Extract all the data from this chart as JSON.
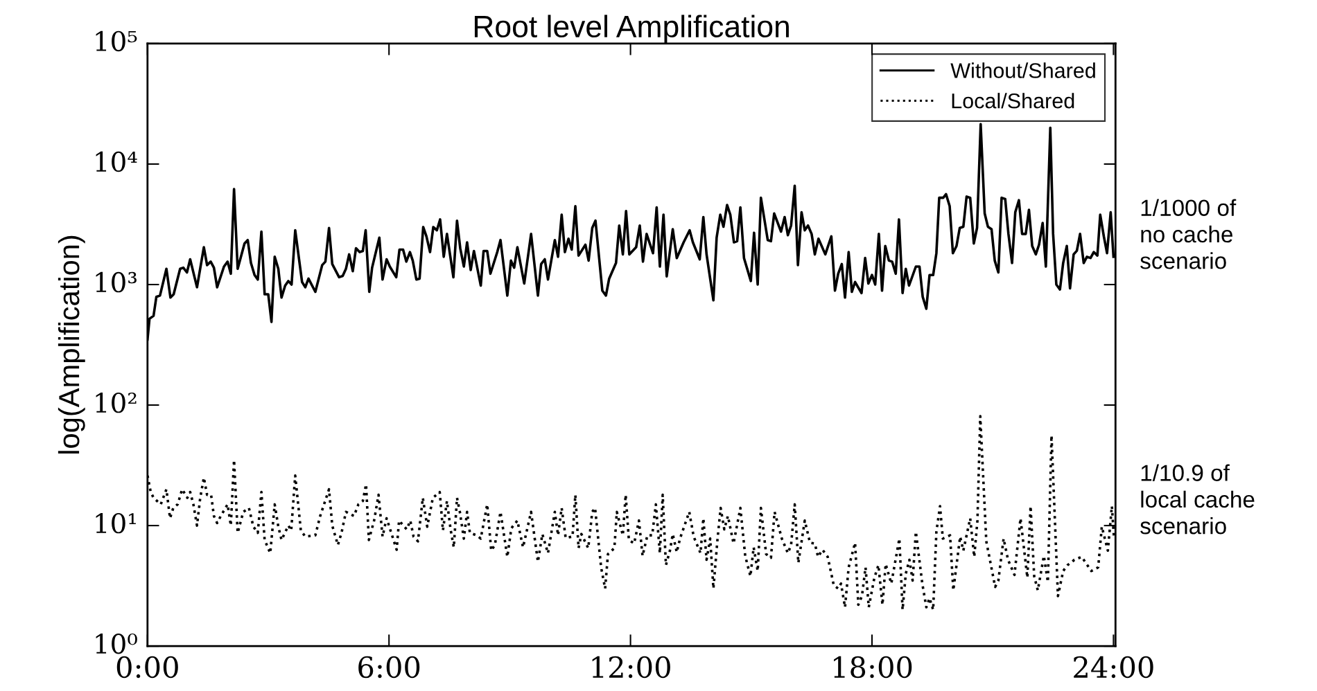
{
  "chart_data": {
    "type": "line",
    "title": "Root level Amplification",
    "ylabel": "log(Amplification)",
    "log": "y",
    "legend": "top right",
    "grid": false,
    "xlim": [
      0,
      24.05
    ],
    "xticks": [
      {
        "value": 0,
        "label": "0:00"
      },
      {
        "value": 6,
        "label": "6:00"
      },
      {
        "value": 12,
        "label": "12:00"
      },
      {
        "value": 18,
        "label": "18:00"
      },
      {
        "value": 24,
        "label": "24:00"
      }
    ],
    "ylim": [
      1,
      100000
    ],
    "yticks": [
      {
        "value": 1,
        "label": "10⁰"
      },
      {
        "value": 10,
        "label": "10¹"
      },
      {
        "value": 100,
        "label": "10²"
      },
      {
        "value": 1000,
        "label": "10³"
      },
      {
        "value": 10000,
        "label": "10⁴"
      },
      {
        "value": 100000,
        "label": "10⁵"
      }
    ],
    "annotations": [
      "1/1000 of\nno cache\nscenario",
      "1/10.9 of\nlocal cache\nscenario"
    ],
    "series": [
      {
        "name": "Without/Shared",
        "color": "#000000",
        "line_style": "solid",
        "x": [
          0,
          0.05,
          0.15,
          0.22,
          0.31,
          0.47,
          0.57,
          0.65,
          0.81,
          0.89,
          0.98,
          1.06,
          1.23,
          1.4,
          1.48,
          1.57,
          1.65,
          1.73,
          1.9,
          1.99,
          2.07,
          2.15,
          2.24,
          2.41,
          2.49,
          2.57,
          2.66,
          2.74,
          2.83,
          2.91,
          3.0,
          3.08,
          3.16,
          3.25,
          3.33,
          3.42,
          3.5,
          3.58,
          3.67,
          3.84,
          3.92,
          4.0,
          4.17,
          4.34,
          4.42,
          4.51,
          4.59,
          4.76,
          4.85,
          4.93,
          5.01,
          5.1,
          5.18,
          5.27,
          5.35,
          5.42,
          5.51,
          5.58,
          5.76,
          5.84,
          5.94,
          6.02,
          6.18,
          6.26,
          6.35,
          6.43,
          6.52,
          6.59,
          6.68,
          6.76,
          6.85,
          6.93,
          7.02,
          7.1,
          7.19,
          7.27,
          7.36,
          7.44,
          7.6,
          7.69,
          7.77,
          7.86,
          7.94,
          8.03,
          8.11,
          8.28,
          8.35,
          8.44,
          8.52,
          8.69,
          8.77,
          8.94,
          9.03,
          9.11,
          9.19,
          9.36,
          9.53,
          9.7,
          9.78,
          9.87,
          9.95,
          10.12,
          10.2,
          10.29,
          10.37,
          10.46,
          10.54,
          10.63,
          10.71,
          10.88,
          10.96,
          11.05,
          11.13,
          11.3,
          11.39,
          11.47,
          11.64,
          11.72,
          11.81,
          11.89,
          11.97,
          12.14,
          12.23,
          12.31,
          12.4,
          12.56,
          12.65,
          12.73,
          12.82,
          12.9,
          13.05,
          13.15,
          13.32,
          13.47,
          13.55,
          13.72,
          13.81,
          13.89,
          14.06,
          14.14,
          14.23,
          14.31,
          14.4,
          14.48,
          14.57,
          14.65,
          14.73,
          14.82,
          14.99,
          15.07,
          15.16,
          15.24,
          15.41,
          15.49,
          15.57,
          15.74,
          15.83,
          15.91,
          15.99,
          16.08,
          16.16,
          16.25,
          16.33,
          16.41,
          16.5,
          16.58,
          16.67,
          16.84,
          16.99,
          17.08,
          17.16,
          17.25,
          17.33,
          17.42,
          17.5,
          17.58,
          17.74,
          17.83,
          17.91,
          18.0,
          18.08,
          18.17,
          18.25,
          18.33,
          18.42,
          18.5,
          18.59,
          18.67,
          18.76,
          18.84,
          18.92,
          19.09,
          19.18,
          19.26,
          19.35,
          19.43,
          19.52,
          19.6,
          19.67,
          19.77,
          19.84,
          19.93,
          20.01,
          20.1,
          20.18,
          20.27,
          20.35,
          20.44,
          20.53,
          20.61,
          20.7,
          20.8,
          20.88,
          20.97,
          21.05,
          21.14,
          21.22,
          21.31,
          21.39,
          21.48,
          21.56,
          21.65,
          21.73,
          21.82,
          21.9,
          21.98,
          22.07,
          22.15,
          22.24,
          22.32,
          22.43,
          22.5,
          22.58,
          22.67,
          22.75,
          22.84,
          22.92,
          23.01,
          23.09,
          23.17,
          23.26,
          23.34,
          23.43,
          23.51,
          23.6,
          23.67,
          23.76,
          23.84,
          23.93,
          24.0
        ],
        "values": [
          350,
          520,
          550,
          790,
          810,
          1350,
          780,
          830,
          1350,
          1380,
          1260,
          1620,
          950,
          2040,
          1450,
          1550,
          1380,
          950,
          1410,
          1550,
          1230,
          6200,
          1350,
          2190,
          2340,
          1510,
          1200,
          1100,
          2750,
          830,
          830,
          490,
          1700,
          1350,
          780,
          980,
          1070,
          1000,
          2820,
          1050,
          950,
          1120,
          870,
          1450,
          1550,
          2950,
          1480,
          1150,
          1180,
          1350,
          1780,
          1290,
          2000,
          1860,
          1900,
          2820,
          870,
          1380,
          2450,
          1100,
          1620,
          1410,
          1150,
          1950,
          1950,
          1550,
          1860,
          1580,
          1100,
          1120,
          3000,
          2510,
          1860,
          3000,
          2820,
          3470,
          1700,
          2630,
          1150,
          3390,
          2000,
          1410,
          2240,
          1320,
          1900,
          980,
          1900,
          1900,
          1230,
          1860,
          2340,
          810,
          1580,
          1380,
          2040,
          1020,
          2630,
          810,
          1480,
          1620,
          1100,
          2340,
          1700,
          3800,
          1860,
          2400,
          1950,
          4470,
          1740,
          2140,
          1580,
          2950,
          3390,
          890,
          810,
          1120,
          1510,
          3090,
          1780,
          4070,
          1780,
          2040,
          3090,
          1550,
          2630,
          1820,
          4370,
          1410,
          3800,
          1170,
          2880,
          1660,
          2240,
          2820,
          2240,
          1620,
          3630,
          1780,
          740,
          2450,
          3800,
          3020,
          4570,
          3800,
          2240,
          2290,
          4370,
          1660,
          1070,
          2690,
          1000,
          5250,
          2340,
          2290,
          3890,
          2750,
          3630,
          2570,
          3090,
          6610,
          1450,
          3980,
          2820,
          3090,
          2630,
          1780,
          2400,
          1780,
          2510,
          890,
          1230,
          1480,
          780,
          1860,
          870,
          1050,
          850,
          1660,
          1020,
          1200,
          1000,
          2630,
          890,
          2090,
          1580,
          1550,
          1230,
          3470,
          850,
          1350,
          980,
          1410,
          1410,
          790,
          630,
          1200,
          1200,
          1820,
          5250,
          5250,
          5620,
          4470,
          1820,
          2090,
          2950,
          3020,
          5370,
          5250,
          2190,
          2950,
          21400,
          3890,
          3020,
          2880,
          1580,
          1260,
          5250,
          5130,
          2630,
          1510,
          3980,
          5010,
          2630,
          2630,
          4170,
          2090,
          1780,
          2140,
          3240,
          1410,
          20000,
          2630,
          1000,
          910,
          1510,
          2090,
          930,
          1780,
          1910,
          2630,
          1510,
          1700,
          1660,
          1860,
          1740,
          3800,
          2510,
          1820,
          3980,
          1700
        ]
      },
      {
        "name": "Local/Shared",
        "color": "#000000",
        "line_style": "dotted",
        "x": [
          0,
          0.08,
          0.15,
          0.33,
          0.47,
          0.56,
          0.64,
          0.75,
          0.86,
          0.99,
          1.06,
          1.14,
          1.23,
          1.31,
          1.4,
          1.48,
          1.58,
          1.65,
          1.73,
          1.82,
          1.99,
          2.07,
          2.15,
          2.24,
          2.38,
          2.52,
          2.63,
          2.74,
          2.83,
          2.91,
          3.05,
          3.16,
          3.25,
          3.33,
          3.5,
          3.57,
          3.67,
          3.81,
          3.92,
          4.17,
          4.29,
          4.51,
          4.59,
          4.73,
          4.82,
          4.93,
          5.13,
          5.24,
          5.35,
          5.43,
          5.5,
          5.63,
          5.74,
          5.84,
          5.94,
          6.02,
          6.19,
          6.25,
          6.44,
          6.53,
          6.61,
          6.72,
          6.84,
          6.95,
          7.09,
          7.26,
          7.34,
          7.44,
          7.53,
          7.61,
          7.69,
          7.76,
          7.86,
          7.94,
          8.01,
          8.18,
          8.28,
          8.44,
          8.54,
          8.63,
          8.77,
          8.94,
          9.04,
          9.19,
          9.33,
          9.53,
          9.7,
          9.81,
          9.95,
          10.12,
          10.2,
          10.29,
          10.39,
          10.56,
          10.63,
          10.71,
          10.78,
          10.95,
          11.05,
          11.12,
          11.27,
          11.37,
          11.44,
          11.6,
          11.66,
          11.81,
          11.88,
          11.96,
          12.09,
          12.21,
          12.3,
          12.42,
          12.54,
          12.63,
          12.73,
          12.8,
          12.88,
          12.98,
          13.05,
          13.15,
          13.23,
          13.46,
          13.57,
          13.74,
          13.81,
          13.89,
          13.98,
          14.06,
          14.16,
          14.24,
          14.33,
          14.42,
          14.56,
          14.73,
          14.85,
          14.98,
          15.06,
          15.16,
          15.24,
          15.37,
          15.49,
          15.58,
          15.76,
          15.91,
          15.99,
          16.08,
          16.17,
          16.33,
          16.46,
          16.58,
          16.66,
          16.77,
          16.9,
          17.05,
          17.16,
          17.23,
          17.33,
          17.42,
          17.58,
          17.66,
          17.75,
          17.84,
          17.92,
          18.06,
          18.16,
          18.26,
          18.34,
          18.48,
          18.68,
          18.76,
          18.84,
          18.93,
          19.01,
          19.09,
          19.25,
          19.35,
          19.43,
          19.52,
          19.6,
          19.69,
          19.76,
          19.94,
          20.02,
          20.19,
          20.27,
          20.44,
          20.54,
          20.62,
          20.69,
          20.84,
          21.06,
          21.14,
          21.27,
          21.38,
          21.54,
          21.69,
          21.86,
          21.94,
          22.03,
          22.12,
          22.27,
          22.37,
          22.46,
          22.62,
          22.75,
          22.86,
          23.03,
          23.21,
          23.45,
          23.62,
          23.71,
          23.86,
          23.96,
          24.01
        ],
        "values": [
          26,
          19,
          17,
          15,
          20,
          11.5,
          14,
          15,
          20,
          17,
          19,
          15,
          10,
          17,
          25,
          18,
          18,
          12,
          10.5,
          12,
          15,
          10,
          35,
          8.7,
          13,
          14,
          9.8,
          8.7,
          19,
          7.6,
          5.9,
          15,
          9.8,
          7.6,
          10,
          9.1,
          26,
          9.1,
          8.1,
          8.3,
          12,
          20,
          10,
          6.9,
          8.7,
          13,
          12,
          15,
          16,
          22,
          7.6,
          11,
          18,
          8.1,
          11.5,
          9.5,
          6.3,
          11,
          9.3,
          11,
          8.1,
          7.4,
          17,
          9.8,
          17,
          19,
          9.1,
          16,
          9.3,
          6.6,
          17,
          13,
          7.8,
          13,
          8.7,
          8.3,
          7.8,
          15,
          6.2,
          6.9,
          13,
          5.5,
          9.5,
          11,
          6.6,
          13,
          5,
          8.5,
          5.9,
          13,
          8.3,
          14,
          7.9,
          8.1,
          18,
          6.5,
          8.5,
          6.5,
          13,
          14,
          4.5,
          3,
          5.8,
          6.5,
          13,
          8.3,
          18,
          7.6,
          7.1,
          11,
          5.6,
          8.3,
          8.3,
          15,
          5.9,
          18,
          4.7,
          6.2,
          8.5,
          6,
          7.8,
          13,
          8.1,
          5.9,
          11.5,
          5.2,
          7.8,
          3,
          7.6,
          14,
          9.3,
          12,
          7.1,
          14,
          5.6,
          3.8,
          6.6,
          4.2,
          14,
          5.8,
          5.4,
          13,
          7.8,
          5.9,
          6.9,
          15,
          4.9,
          11,
          7.2,
          7.1,
          5.5,
          6.3,
          5.5,
          3.2,
          3,
          3.3,
          2.1,
          4.5,
          7.2,
          2.2,
          2.6,
          4.5,
          2.1,
          3.7,
          4.7,
          2.2,
          4.8,
          3.3,
          7.8,
          2,
          4,
          5.2,
          3.5,
          8.9,
          3.3,
          2.1,
          2.5,
          2,
          8.9,
          14.5,
          7.8,
          8.3,
          2.9,
          8.1,
          6.2,
          11.5,
          5.5,
          11,
          81,
          7.4,
          3.1,
          3.5,
          7.8,
          5.2,
          3.9,
          11.5,
          3.7,
          14.5,
          3.8,
          2.9,
          5.6,
          3.4,
          56,
          2.6,
          4.2,
          4.7,
          5.2,
          5.5,
          4.2,
          4.5,
          9.8,
          6.2,
          14.5,
          8.1
        ]
      }
    ]
  }
}
